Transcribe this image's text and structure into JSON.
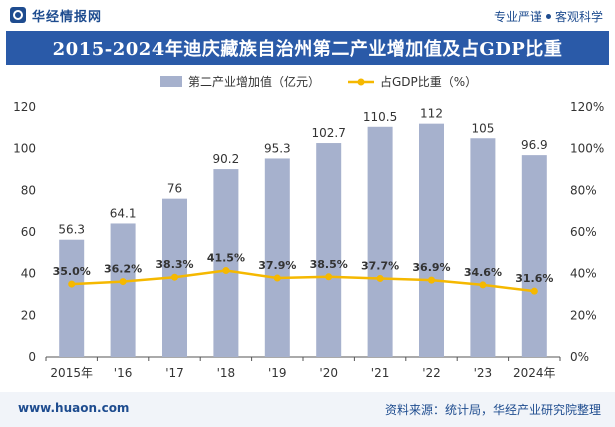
{
  "header": {
    "brand": "华经情报网",
    "tagline_left": "专业严谨",
    "tagline_right": "客观科学"
  },
  "footer": {
    "url": "www.huaon.com",
    "source": "资料来源：统计局，华经产业研究院整理"
  },
  "colors": {
    "bar": "#a6b1cd",
    "line": "#f5b800",
    "title_bg": "#2a5aa8",
    "brand": "#1e4c8f"
  },
  "chart_data": {
    "type": "bar",
    "title": "2015-2024年迪庆藏族自治州第二产业增加值及占GDP比重",
    "categories": [
      "2015年",
      "'16",
      "'17",
      "'18",
      "'19",
      "'20",
      "'21",
      "'22",
      "'23",
      "2024年"
    ],
    "series": [
      {
        "name": "第二产业增加值（亿元）",
        "type": "bar",
        "axis": "left",
        "values": [
          56.3,
          64.1,
          76,
          90.2,
          95.3,
          102.7,
          110.5,
          112,
          105,
          96.9
        ],
        "labels": [
          "56.3",
          "64.1",
          "76",
          "90.2",
          "95.3",
          "102.7",
          "110.5",
          "112",
          "105",
          "96.9"
        ]
      },
      {
        "name": "占GDP比重（%）",
        "type": "line",
        "axis": "right",
        "values": [
          35.0,
          36.2,
          38.3,
          41.5,
          37.9,
          38.5,
          37.7,
          36.9,
          34.6,
          31.6
        ],
        "labels": [
          "35.0%",
          "36.2%",
          "38.3%",
          "41.5%",
          "37.9%",
          "38.5%",
          "37.7%",
          "36.9%",
          "34.6%",
          "31.6%"
        ]
      }
    ],
    "y_left": {
      "min": 0,
      "max": 120,
      "ticks": [
        "0",
        "20",
        "40",
        "60",
        "80",
        "100",
        "120"
      ]
    },
    "y_right": {
      "min": 0,
      "max": 120,
      "ticks": [
        "0%",
        "20%",
        "40%",
        "60%",
        "80%",
        "100%",
        "120%"
      ]
    },
    "legend_position": "top-center",
    "grid": false
  }
}
